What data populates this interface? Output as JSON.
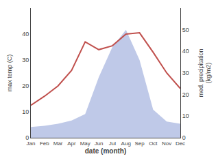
{
  "chart_data": {
    "type": "line",
    "categories": [
      "Jan",
      "Feb",
      "Mar",
      "Apr",
      "May",
      "Jun",
      "Jul",
      "Aug",
      "Sep",
      "Oct",
      "Nov",
      "Dec"
    ],
    "series": [
      {
        "type": "area",
        "color": "#bfc9e8",
        "axis": "y2",
        "values": [
          5.0,
          5.5,
          6.5,
          8.0,
          11.0,
          28.0,
          42.0,
          50.0,
          36.0,
          13.0,
          7.5,
          6.5
        ]
      },
      {
        "type": "line",
        "color": "#c0504d",
        "values": [
          12.5,
          16.0,
          20.0,
          26.0,
          37.0,
          34.0,
          35.5,
          40.0,
          40.5,
          33.0,
          25.0,
          19.0
        ]
      }
    ],
    "xlabel": "date (month)",
    "ylabel": "max temp (C)",
    "y2label": "med. precipitation\n(kg/m2)",
    "ylim": [
      0,
      50
    ],
    "yticks": [
      0,
      10,
      20,
      30,
      40
    ],
    "y2lim": [
      0,
      60
    ],
    "y2ticks": [
      0,
      10,
      20,
      30,
      40,
      50
    ],
    "grid": false
  }
}
